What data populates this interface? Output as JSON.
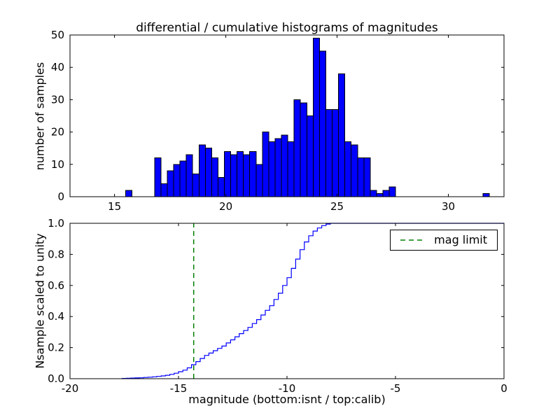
{
  "title": "differential / cumulative histograms of magnitudes",
  "colors": {
    "bar_fill": "#0000ff",
    "bar_edge": "#000000",
    "step_line": "#0000ff",
    "mag_limit": "#008000",
    "axis": "#000000",
    "background": "#ffffff"
  },
  "chart_data": [
    {
      "type": "bar",
      "title": "differential / cumulative histograms of magnitudes",
      "ylabel": "number of samples",
      "xlim": [
        13.0,
        32.5
      ],
      "ylim": [
        0,
        50
      ],
      "xticks": [
        15,
        20,
        25,
        30
      ],
      "yticks": [
        0,
        10,
        20,
        30,
        40,
        50
      ],
      "xtick_labels": [
        "15",
        "20",
        "25",
        "30"
      ],
      "ytick_labels": [
        "0",
        "10",
        "20",
        "30",
        "40",
        "50"
      ],
      "grid": false,
      "bins": {
        "start": 16.8,
        "width": 0.285,
        "counts": [
          12,
          4,
          8,
          10,
          11,
          13,
          7,
          16,
          15,
          12,
          6,
          14,
          13,
          14,
          13,
          14,
          10,
          20,
          17,
          18,
          19,
          17,
          30,
          29,
          25,
          49,
          45,
          27,
          27,
          38,
          17,
          16,
          12,
          12,
          2,
          1,
          2,
          3
        ]
      },
      "outlier_bars": [
        {
          "x": 15.5,
          "count": 2
        },
        {
          "x": 31.55,
          "count": 1
        }
      ]
    },
    {
      "type": "line",
      "style": "step-cumulative",
      "ylabel": "Nsample scaled to unity",
      "xlabel": "magnitude (bottom:isnt / top:calib)",
      "xlim": [
        -20,
        0
      ],
      "ylim": [
        0.0,
        1.0
      ],
      "xticks": [
        -20,
        -15,
        -10,
        -5,
        0
      ],
      "yticks": [
        0.0,
        0.2,
        0.4,
        0.6,
        0.8,
        1.0
      ],
      "xtick_labels": [
        "-20",
        "-15",
        "-10",
        "-5",
        "0"
      ],
      "ytick_labels": [
        "0.0",
        "0.2",
        "0.4",
        "0.6",
        "0.8",
        "1.0"
      ],
      "grid": false,
      "step": {
        "start": -17.6,
        "width": 0.2,
        "values": [
          0.002,
          0.003,
          0.004,
          0.005,
          0.006,
          0.008,
          0.01,
          0.012,
          0.015,
          0.018,
          0.022,
          0.028,
          0.035,
          0.045,
          0.055,
          0.07,
          0.09,
          0.11,
          0.13,
          0.15,
          0.165,
          0.18,
          0.195,
          0.21,
          0.23,
          0.25,
          0.27,
          0.29,
          0.31,
          0.33,
          0.355,
          0.38,
          0.41,
          0.44,
          0.47,
          0.51,
          0.55,
          0.6,
          0.65,
          0.71,
          0.77,
          0.83,
          0.88,
          0.92,
          0.95,
          0.97,
          0.985,
          0.995,
          1.0
        ]
      },
      "mag_limit_x": -14.3,
      "legend": {
        "label": "mag limit",
        "position": "upper right"
      }
    }
  ]
}
